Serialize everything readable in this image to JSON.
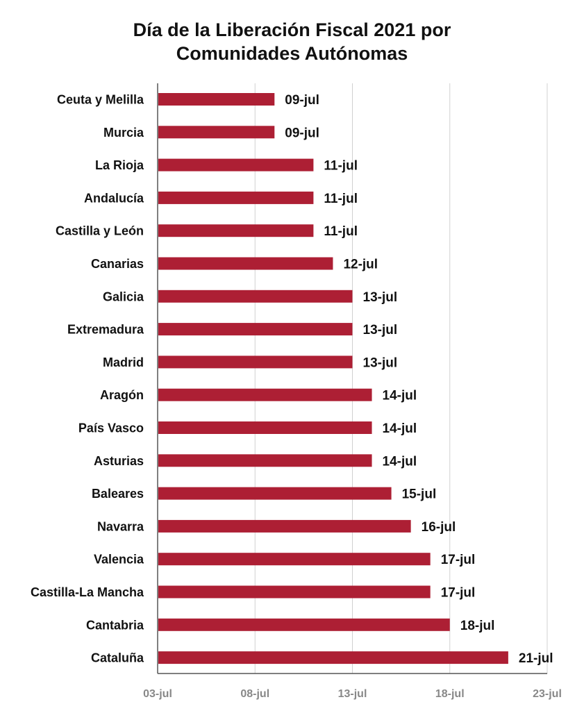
{
  "title_lines": [
    "Día de la Liberación Fiscal 2021 por",
    "Comunidades Autónomas"
  ],
  "chart_data": {
    "type": "bar",
    "orientation": "horizontal",
    "title": "Día de la Liberación Fiscal 2021 por Comunidades Autónomas",
    "categories": [
      "Ceuta y Melilla",
      "Murcia",
      "La Rioja",
      "Andalucía",
      "Castilla y León",
      "Canarias",
      "Galicia",
      "Extremadura",
      "Madrid",
      "Aragón",
      "País Vasco",
      "Asturias",
      "Baleares",
      "Navarra",
      "Valencia",
      "Castilla-La Mancha",
      "Cantabria",
      "Cataluña"
    ],
    "values": [
      "2021-07-09",
      "2021-07-09",
      "2021-07-11",
      "2021-07-11",
      "2021-07-11",
      "2021-07-12",
      "2021-07-13",
      "2021-07-13",
      "2021-07-13",
      "2021-07-14",
      "2021-07-14",
      "2021-07-14",
      "2021-07-15",
      "2021-07-16",
      "2021-07-17",
      "2021-07-17",
      "2021-07-18",
      "2021-07-21"
    ],
    "value_labels": [
      "09-jul",
      "09-jul",
      "11-jul",
      "11-jul",
      "11-jul",
      "12-jul",
      "13-jul",
      "13-jul",
      "13-jul",
      "14-jul",
      "14-jul",
      "14-jul",
      "15-jul",
      "16-jul",
      "17-jul",
      "17-jul",
      "18-jul",
      "21-jul"
    ],
    "xlim": [
      "2021-07-03",
      "2021-07-23"
    ],
    "xticks": [
      "2021-07-03",
      "2021-07-08",
      "2021-07-13",
      "2021-07-18",
      "2021-07-23"
    ],
    "xtick_labels": [
      "03-jul",
      "08-jul",
      "13-jul",
      "18-jul",
      "23-jul"
    ],
    "xlabel": "",
    "ylabel": "",
    "grid": "vertical",
    "bar_color": "#ad1f34",
    "grid_color": "#d0d0d0",
    "axis_color": "#555555"
  }
}
